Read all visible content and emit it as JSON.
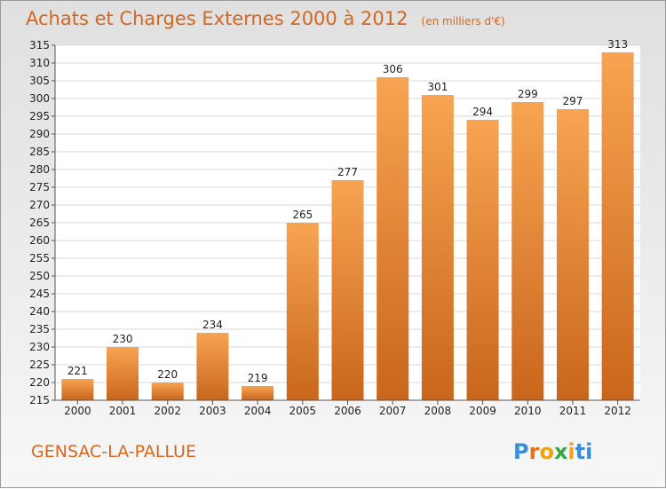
{
  "chart_data": {
    "type": "bar",
    "title": "Achats et Charges Externes 2000 à 2012",
    "unit": "(en milliers d'€)",
    "categories": [
      "2000",
      "2001",
      "2002",
      "2003",
      "2004",
      "2005",
      "2006",
      "2007",
      "2008",
      "2009",
      "2010",
      "2011",
      "2012"
    ],
    "values": [
      221,
      230,
      220,
      234,
      219,
      265,
      277,
      306,
      301,
      294,
      299,
      297,
      313
    ],
    "ylim": [
      215,
      315
    ],
    "yticks": [
      215,
      220,
      225,
      230,
      235,
      240,
      245,
      250,
      255,
      260,
      265,
      270,
      275,
      280,
      285,
      290,
      295,
      300,
      305,
      310,
      315
    ],
    "grid": true,
    "bar_color_top": "#f7a452",
    "bar_color_bottom": "#c9661c",
    "accent_color": "#d4661f"
  },
  "commune": "GENSAC-LA-PALLUE",
  "brand": {
    "letters": [
      "P",
      "r",
      "o",
      "x",
      "i",
      "t",
      "i"
    ],
    "colors": [
      "#3b8fd6",
      "#e8731c",
      "#f0a21a",
      "#3aa64a",
      "#f0a21a",
      "#3b8fd6",
      "#3b8fd6"
    ]
  }
}
